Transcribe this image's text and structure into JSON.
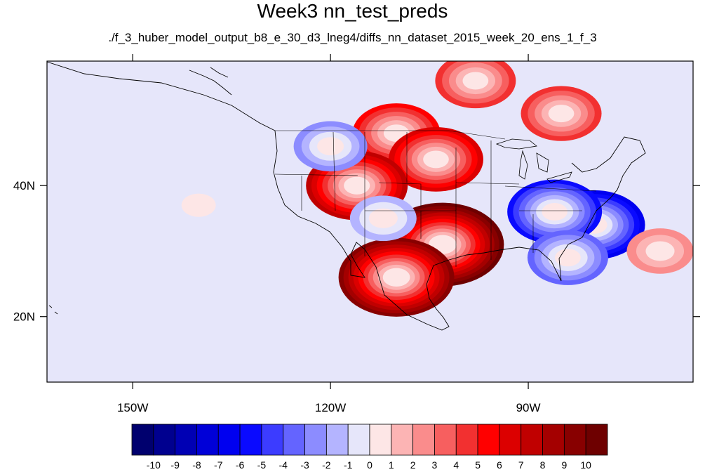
{
  "header": {
    "title": "Week3 nn_test_preds",
    "subtitle": "./f_3_huber_model_output_b8_e_30_d3_lneg4/diffs_nn_dataset_2015_week_20_ens_1_f_3"
  },
  "map": {
    "lon_range": [
      -163,
      -65
    ],
    "lat_range": [
      10,
      59
    ],
    "lon_ticks": [
      {
        "value": -150,
        "label": "150W"
      },
      {
        "value": -120,
        "label": "120W"
      },
      {
        "value": -90,
        "label": "90W"
      }
    ],
    "lat_ticks": [
      {
        "value": 40,
        "label": "40N"
      },
      {
        "value": 20,
        "label": "20N"
      }
    ],
    "anomalies": [
      {
        "lon": -110,
        "lat": 48,
        "value": 5
      },
      {
        "lon": -104,
        "lat": 44,
        "value": 6
      },
      {
        "lon": -116,
        "lat": 40,
        "value": 7
      },
      {
        "lon": -103,
        "lat": 31,
        "value": 10
      },
      {
        "lon": -110,
        "lat": 26,
        "value": 9
      },
      {
        "lon": -98,
        "lat": 56,
        "value": 4
      },
      {
        "lon": -85,
        "lat": 51,
        "value": 4
      },
      {
        "lon": -80,
        "lat": 34,
        "value": -7
      },
      {
        "lon": -86,
        "lat": 36,
        "value": -6
      },
      {
        "lon": -84,
        "lat": 29,
        "value": -4
      },
      {
        "lon": -120,
        "lat": 46,
        "value": -3
      },
      {
        "lon": -112,
        "lat": 35,
        "value": -2
      },
      {
        "lon": -140,
        "lat": 37,
        "value": -1
      },
      {
        "lon": -70,
        "lat": 30,
        "value": 2
      }
    ]
  },
  "colorbar": {
    "levels": [
      "-10",
      "-9",
      "-8",
      "-7",
      "-6",
      "-5",
      "-4",
      "-3",
      "-2",
      "-1",
      "0",
      "1",
      "2",
      "3",
      "4",
      "5",
      "6",
      "7",
      "8",
      "9",
      "10"
    ],
    "colors": [
      "#00006e",
      "#00008f",
      "#0000b4",
      "#0000d8",
      "#0000f0",
      "#0a0aff",
      "#3c3cff",
      "#6464ff",
      "#8c8cff",
      "#b4b4ff",
      "#e6e6fa",
      "#fde6e6",
      "#fcb4b4",
      "#fa8c8c",
      "#f75f5f",
      "#f23030",
      "#ff0000",
      "#dc0000",
      "#c00000",
      "#a40000",
      "#880000",
      "#6e0000"
    ]
  }
}
